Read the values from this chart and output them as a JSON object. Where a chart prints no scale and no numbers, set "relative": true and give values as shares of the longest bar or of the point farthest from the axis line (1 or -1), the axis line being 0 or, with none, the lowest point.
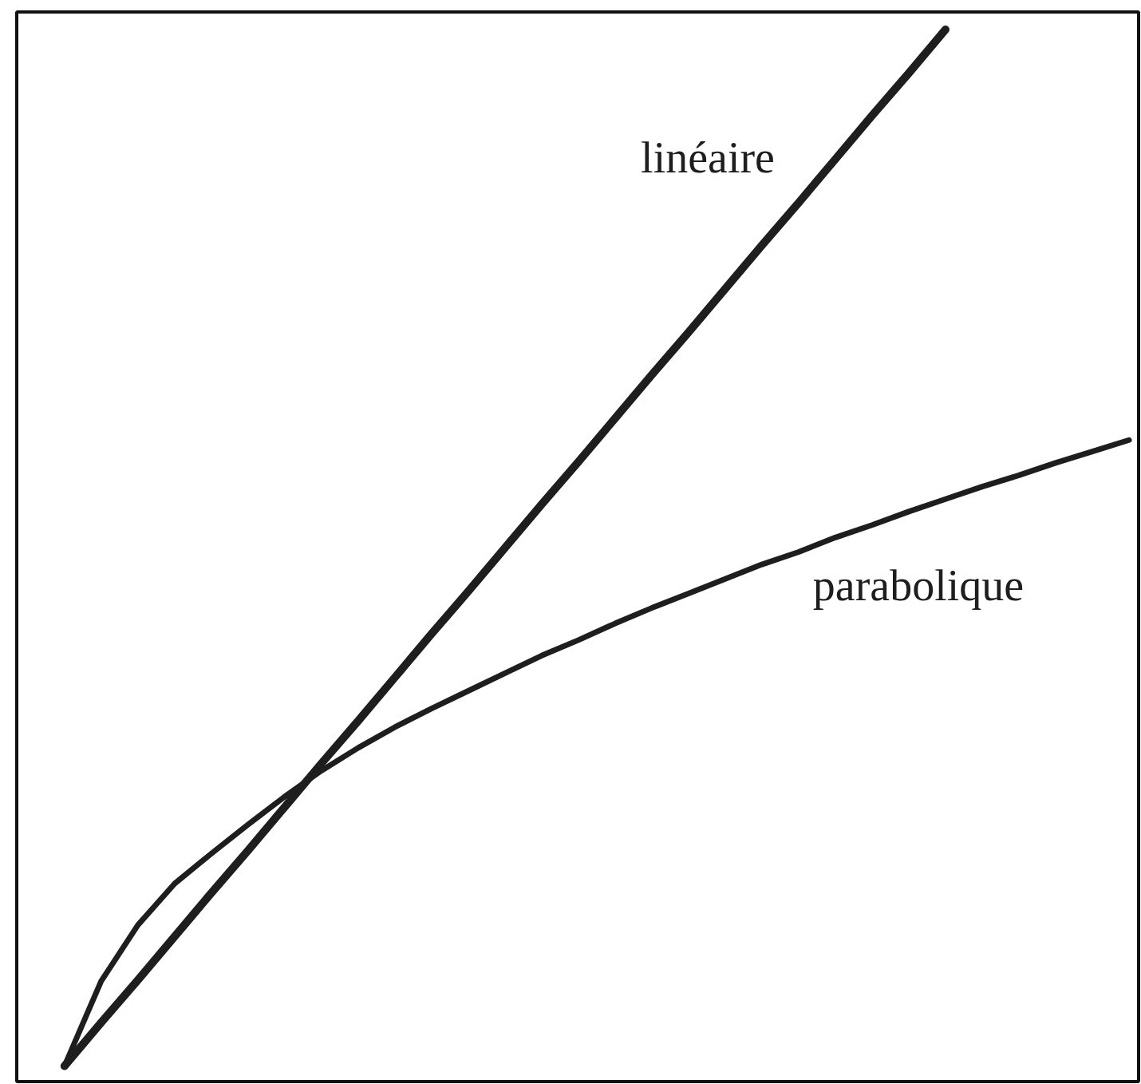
{
  "chart_data": {
    "type": "line",
    "relative": true,
    "categories": [
      null,
      null,
      null,
      null,
      null,
      null,
      null,
      null,
      null,
      null,
      null,
      null,
      null,
      null,
      null,
      null,
      null,
      null,
      null,
      null,
      null,
      null,
      null,
      null,
      null,
      null,
      null,
      null,
      null,
      null
    ],
    "series": [
      {
        "name": "linéaire",
        "color": "#1e1e1e",
        "values": [
          0,
          0.042,
          0.083,
          0.125,
          0.167,
          0.208,
          0.25,
          0.292,
          0.333,
          0.375,
          0.417,
          0.458,
          0.5,
          0.542,
          0.583,
          0.625,
          0.667,
          0.708,
          0.75,
          0.792,
          0.833,
          0.875,
          0.917,
          0.958,
          1,
          null,
          null,
          null,
          null,
          null
        ]
      },
      {
        "name": "parabolique",
        "color": "#1e1e1e",
        "values": [
          0,
          0.082,
          0.136,
          0.176,
          0.205,
          0.233,
          0.26,
          0.285,
          0.307,
          0.327,
          0.345,
          0.362,
          0.379,
          0.396,
          0.411,
          0.427,
          0.442,
          0.456,
          0.47,
          0.484,
          0.496,
          0.51,
          0.522,
          0.535,
          0.547,
          0.559,
          0.57,
          0.582,
          0.593,
          0.604
        ]
      }
    ]
  }
}
